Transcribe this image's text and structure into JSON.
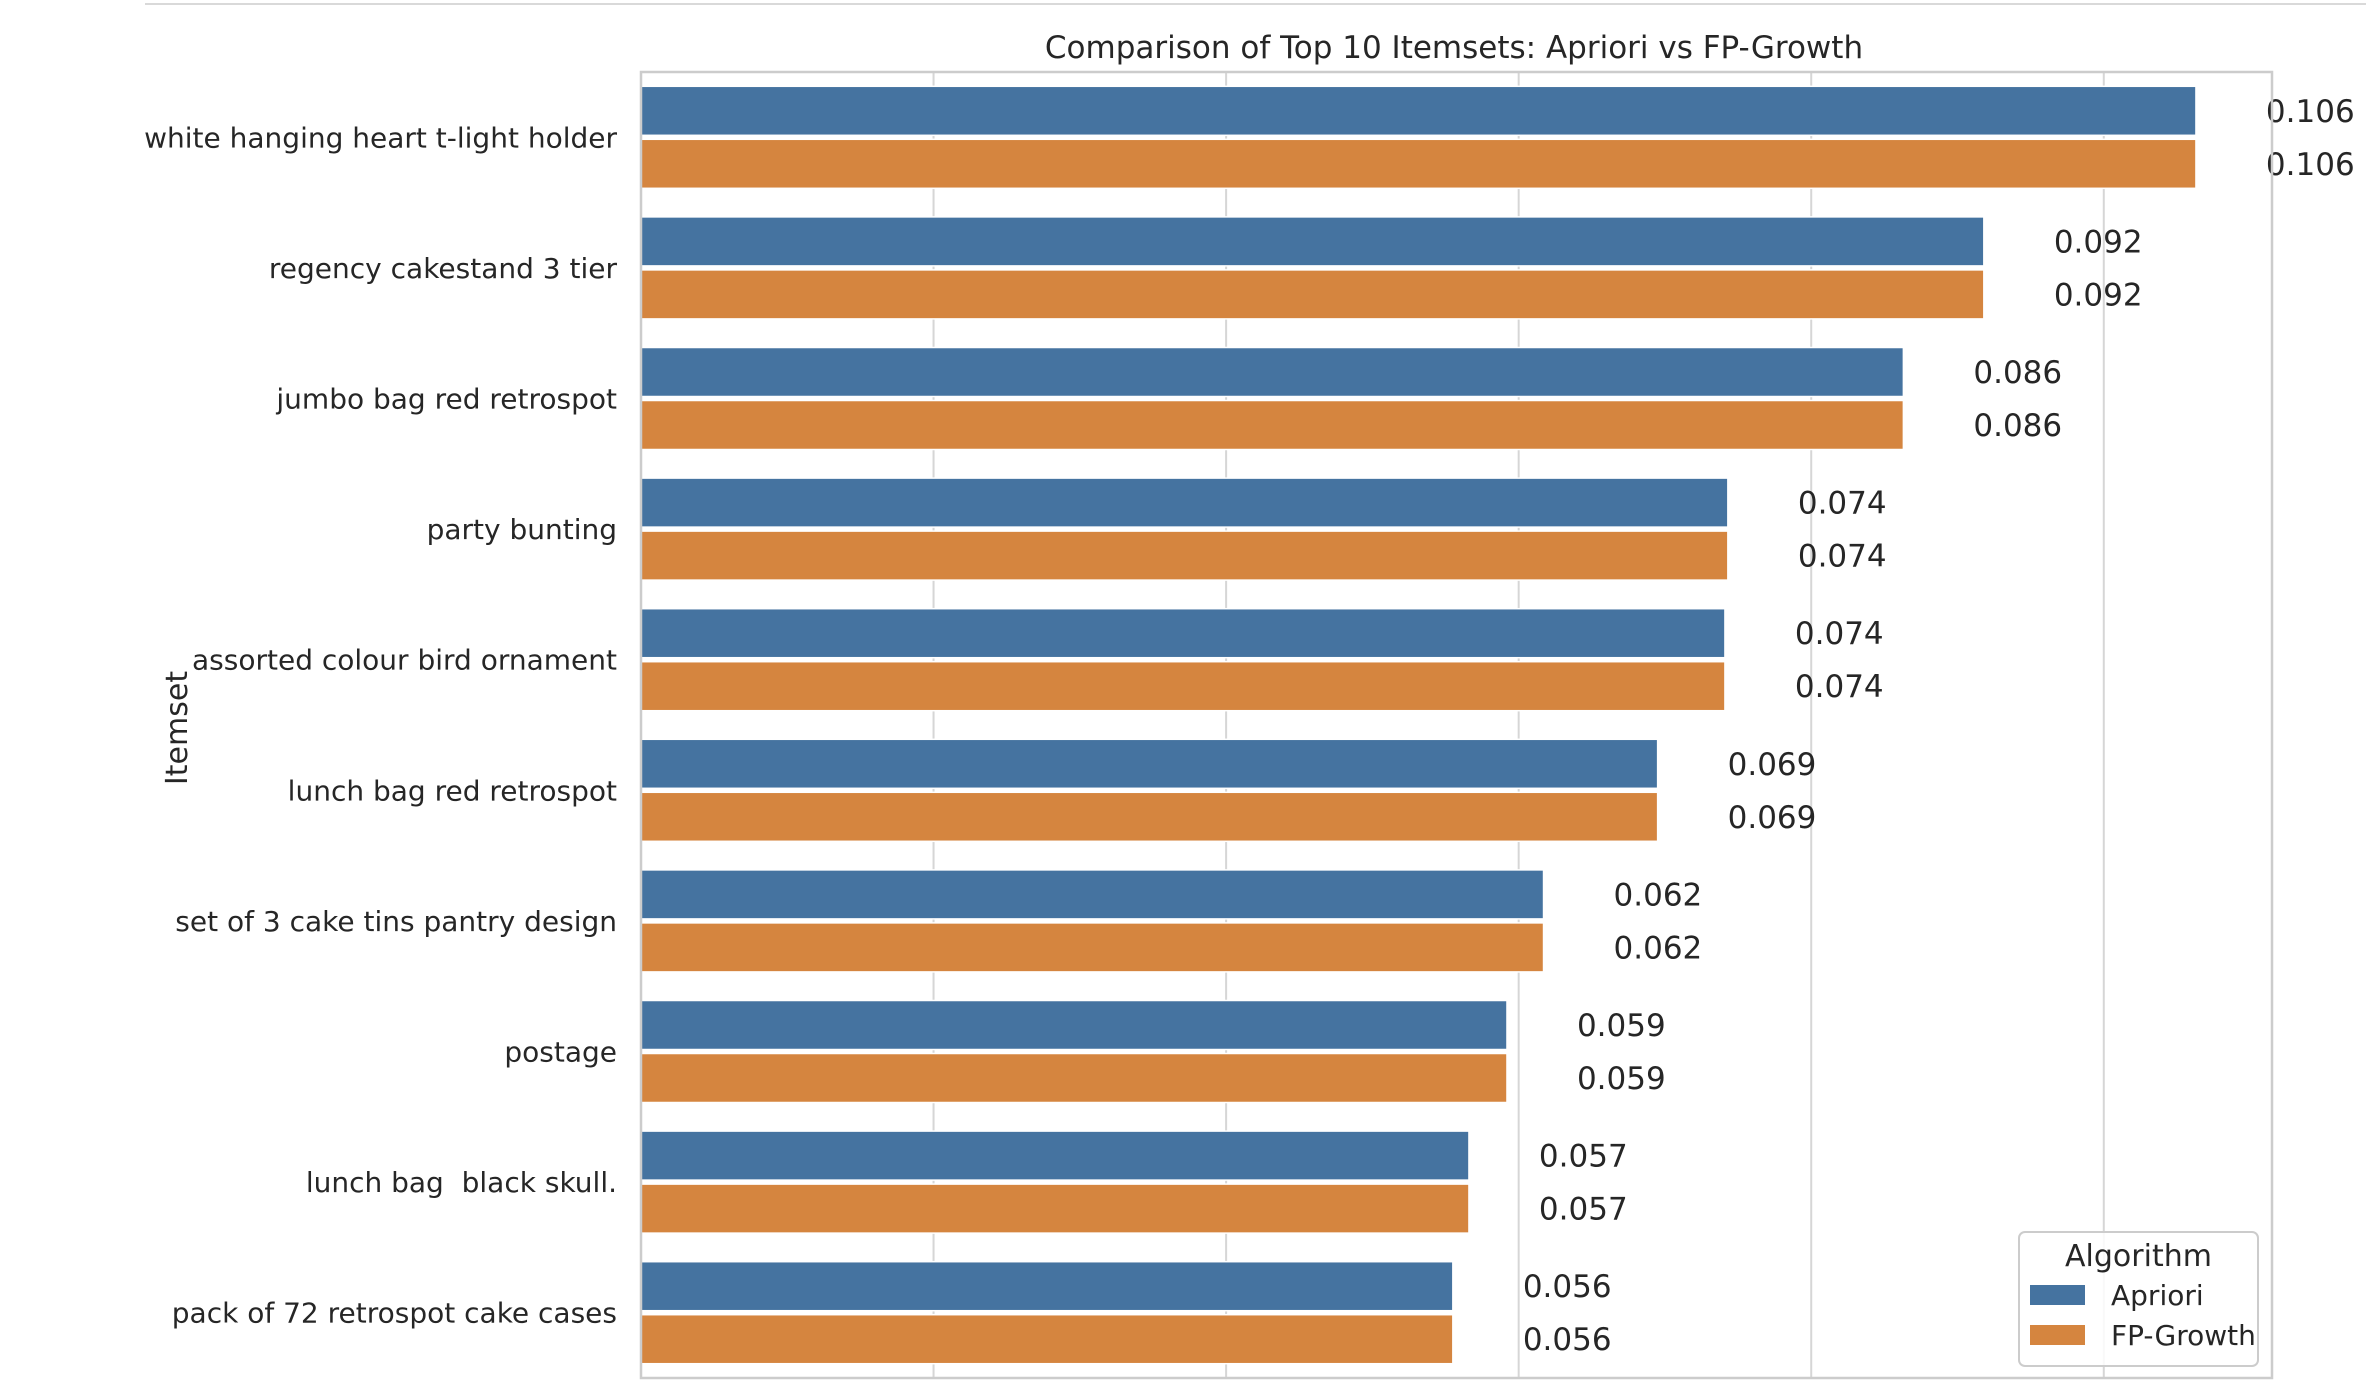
{
  "chart_data": {
    "type": "bar",
    "orientation": "horizontal",
    "title": "Comparison of Top 10 Itemsets: Apriori vs FP-Growth",
    "xlabel": "",
    "ylabel": "Itemset",
    "categories": [
      "white hanging heart t-light holder",
      "regency cakestand 3 tier",
      "jumbo bag red retrospot",
      "party bunting",
      "assorted colour bird ornament",
      "lunch bag red retrospot",
      "set of 3 cake tins pantry design",
      "postage",
      "lunch bag  black skull.",
      "pack of 72 retrospot cake cases"
    ],
    "series": [
      {
        "name": "Apriori",
        "color": "#4573a0",
        "values": [
          0.1063,
          0.0918,
          0.0863,
          0.0743,
          0.0741,
          0.0695,
          0.0617,
          0.0592,
          0.0566,
          0.0555
        ],
        "labels": [
          "0.106",
          "0.092",
          "0.086",
          "0.074",
          "0.074",
          "0.069",
          "0.062",
          "0.059",
          "0.057",
          "0.056"
        ]
      },
      {
        "name": "FP-Growth",
        "color": "#d5853f",
        "values": [
          0.1063,
          0.0918,
          0.0863,
          0.0743,
          0.0741,
          0.0695,
          0.0617,
          0.0592,
          0.0566,
          0.0555
        ],
        "labels": [
          "0.106",
          "0.092",
          "0.086",
          "0.074",
          "0.074",
          "0.069",
          "0.062",
          "0.059",
          "0.057",
          "0.056"
        ]
      }
    ],
    "xlim": [
      0,
      0.1115
    ],
    "x_gridlines": [
      0.02,
      0.04,
      0.06,
      0.08,
      0.1
    ],
    "grid": true,
    "legend": {
      "title": "Algorithm",
      "placement": "bottom-right"
    }
  }
}
